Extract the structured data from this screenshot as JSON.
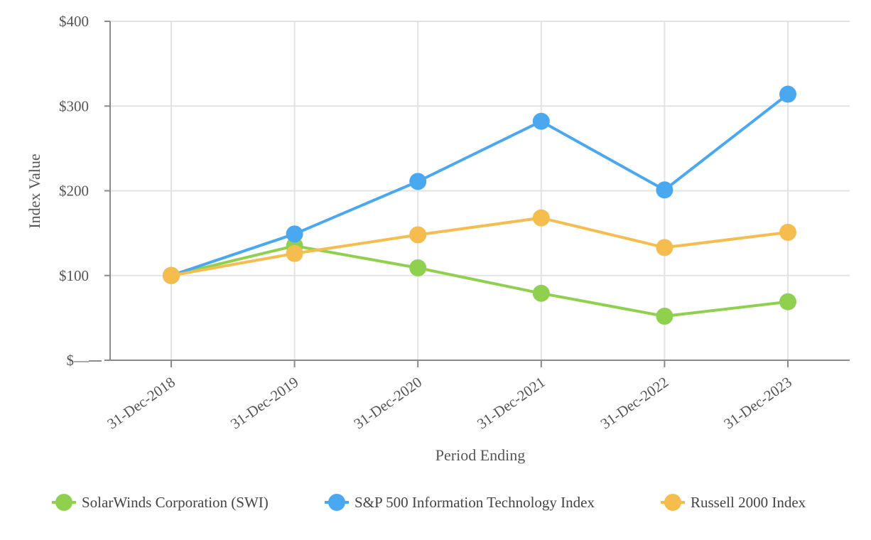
{
  "chart_data": {
    "type": "line",
    "title": "",
    "xlabel": "Period Ending",
    "ylabel": "Index Value",
    "categories": [
      "31-Dec-2018",
      "31-Dec-2019",
      "31-Dec-2020",
      "31-Dec-2021",
      "31-Dec-2022",
      "31-Dec-2023"
    ],
    "ylim": [
      0,
      400
    ],
    "yticks": [
      {
        "value": 0,
        "label": "$—"
      },
      {
        "value": 100,
        "label": "$100"
      },
      {
        "value": 200,
        "label": "$200"
      },
      {
        "value": 300,
        "label": "$300"
      },
      {
        "value": 400,
        "label": "$400"
      }
    ],
    "grid": true,
    "legend_position": "bottom",
    "series": [
      {
        "key": "swi",
        "name": "SolarWinds Corporation (SWI)",
        "color": "#8fd14f",
        "values": [
          100,
          135,
          109,
          79,
          52,
          69
        ]
      },
      {
        "key": "sp500it",
        "name": "S&P 500 Information Technology Index",
        "color": "#4aa8f0",
        "values": [
          100,
          149,
          211,
          282,
          201,
          314
        ]
      },
      {
        "key": "russell2000",
        "name": "Russell 2000 Index",
        "color": "#f5bc4e",
        "values": [
          100,
          126,
          148,
          168,
          133,
          151
        ]
      }
    ]
  }
}
